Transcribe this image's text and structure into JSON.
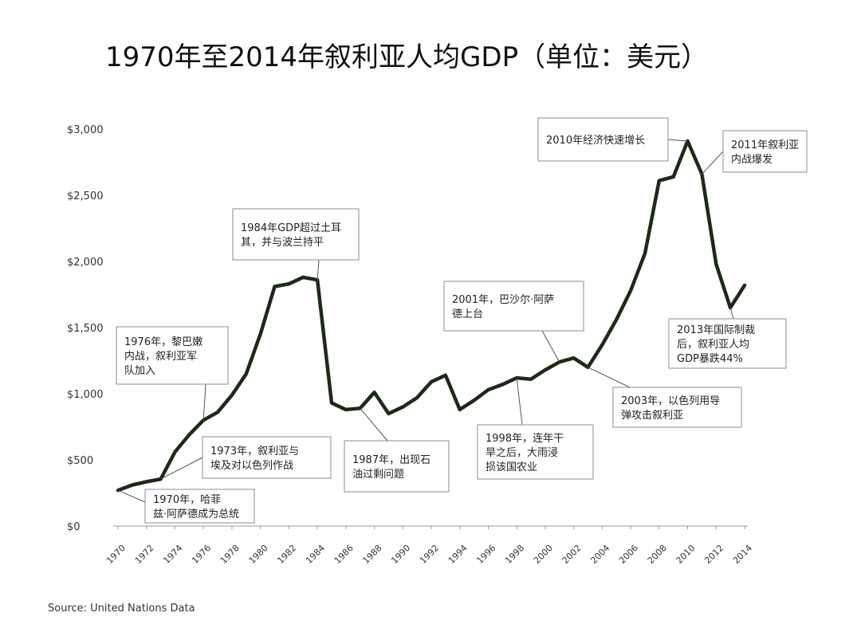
{
  "page": {
    "title": "1970年至2014年叙利亚人均GDP（单位：美元）",
    "source": "Source: United Nations Data"
  },
  "colors": {
    "line": "#1c2a18",
    "axis": "#999999",
    "box_border": "#8c8c8c"
  },
  "chart_data": {
    "type": "line",
    "title": "1970年至2014年叙利亚人均GDP（单位：美元）",
    "xlabel": "",
    "ylabel": "",
    "xlim": [
      1970,
      2014
    ],
    "ylim": [
      0,
      3000
    ],
    "grid": false,
    "y_ticks": [
      {
        "value": 0,
        "label": "$0"
      },
      {
        "value": 500,
        "label": "$500"
      },
      {
        "value": 1000,
        "label": "$1,000"
      },
      {
        "value": 1500,
        "label": "$1,500"
      },
      {
        "value": 2000,
        "label": "$2,000"
      },
      {
        "value": 2500,
        "label": "$2,500"
      },
      {
        "value": 3000,
        "label": "$3,000"
      }
    ],
    "x_ticks": [
      {
        "value": 1970,
        "label": "1970"
      },
      {
        "value": 1972,
        "label": "1972"
      },
      {
        "value": 1974,
        "label": "1974"
      },
      {
        "value": 1976,
        "label": "1976"
      },
      {
        "value": 1978,
        "label": "1978"
      },
      {
        "value": 1980,
        "label": "1980"
      },
      {
        "value": 1982,
        "label": "1982"
      },
      {
        "value": 1984,
        "label": "1984"
      },
      {
        "value": 1986,
        "label": "1986"
      },
      {
        "value": 1988,
        "label": "1988"
      },
      {
        "value": 1990,
        "label": "1990"
      },
      {
        "value": 1992,
        "label": "1992"
      },
      {
        "value": 1994,
        "label": "1994"
      },
      {
        "value": 1996,
        "label": "1996"
      },
      {
        "value": 1998,
        "label": "1998"
      },
      {
        "value": 2000,
        "label": "2000"
      },
      {
        "value": 2002,
        "label": "2002"
      },
      {
        "value": 2004,
        "label": "2004"
      },
      {
        "value": 2006,
        "label": "2006"
      },
      {
        "value": 2008,
        "label": "2008"
      },
      {
        "value": 2010,
        "label": "2010"
      },
      {
        "value": 2012,
        "label": "2012"
      },
      {
        "value": 2014,
        "label": "2014"
      }
    ],
    "series": [
      {
        "name": "叙利亚人均GDP",
        "points": [
          [
            1970,
            270
          ],
          [
            1971,
            310
          ],
          [
            1972,
            335
          ],
          [
            1973,
            355
          ],
          [
            1974,
            560
          ],
          [
            1975,
            690
          ],
          [
            1976,
            800
          ],
          [
            1977,
            860
          ],
          [
            1978,
            990
          ],
          [
            1979,
            1150
          ],
          [
            1980,
            1450
          ],
          [
            1981,
            1810
          ],
          [
            1982,
            1830
          ],
          [
            1983,
            1880
          ],
          [
            1984,
            1860
          ],
          [
            1985,
            930
          ],
          [
            1986,
            880
          ],
          [
            1987,
            890
          ],
          [
            1988,
            1010
          ],
          [
            1989,
            850
          ],
          [
            1990,
            900
          ],
          [
            1991,
            970
          ],
          [
            1992,
            1090
          ],
          [
            1993,
            1140
          ],
          [
            1994,
            880
          ],
          [
            1995,
            950
          ],
          [
            1996,
            1030
          ],
          [
            1997,
            1070
          ],
          [
            1998,
            1120
          ],
          [
            1999,
            1110
          ],
          [
            2000,
            1180
          ],
          [
            2001,
            1240
          ],
          [
            2002,
            1270
          ],
          [
            2003,
            1200
          ],
          [
            2004,
            1370
          ],
          [
            2005,
            1560
          ],
          [
            2006,
            1780
          ],
          [
            2007,
            2060
          ],
          [
            2008,
            2610
          ],
          [
            2009,
            2640
          ],
          [
            2010,
            2910
          ],
          [
            2011,
            2660
          ],
          [
            2012,
            1980
          ],
          [
            2013,
            1650
          ],
          [
            2014,
            1820
          ]
        ]
      }
    ],
    "annotations": [
      {
        "id": "ann-1970",
        "lines": [
          "1970年，哈菲",
          "兹·阿萨德成为总统"
        ],
        "x": 1970,
        "y": 270
      },
      {
        "id": "ann-1973",
        "lines": [
          "1973年，叙利亚与",
          "埃及对以色列作战"
        ],
        "x": 1973,
        "y": 355
      },
      {
        "id": "ann-1976",
        "lines": [
          "1976年，黎巴嫩",
          "内战，叙利亚军",
          "队加入"
        ],
        "x": 1976,
        "y": 800
      },
      {
        "id": "ann-1984",
        "lines": [
          "1984年GDP超过土耳",
          "其，并与波兰持平"
        ],
        "x": 1984,
        "y": 1860
      },
      {
        "id": "ann-1987",
        "lines": [
          "1987年，出现石",
          "油过剩问题"
        ],
        "x": 1987,
        "y": 890
      },
      {
        "id": "ann-1998",
        "lines": [
          "1998年，连年干",
          "旱之后，大雨浸",
          "损该国农业"
        ],
        "x": 1998,
        "y": 1120
      },
      {
        "id": "ann-2001",
        "lines": [
          "2001年，巴沙尔·阿萨",
          "德上台"
        ],
        "x": 2001,
        "y": 1240
      },
      {
        "id": "ann-2003",
        "lines": [
          "2003年，以色列用导",
          "弹攻击叙利亚"
        ],
        "x": 2003,
        "y": 1200
      },
      {
        "id": "ann-2010",
        "lines": [
          "2010年经济快速增长"
        ],
        "x": 2010,
        "y": 2910
      },
      {
        "id": "ann-2011",
        "lines": [
          "2011年叙利亚",
          "内战爆发"
        ],
        "x": 2011,
        "y": 2660
      },
      {
        "id": "ann-2013",
        "lines": [
          "2013年国际制裁",
          "后，叙利亚人均",
          "GDP暴跌44%"
        ],
        "x": 2013,
        "y": 1650
      }
    ]
  }
}
